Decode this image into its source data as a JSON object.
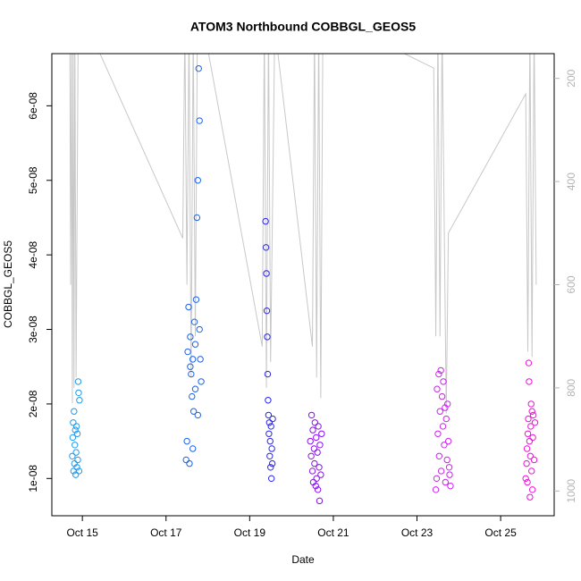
{
  "chart_data": {
    "type": "scatter",
    "title": "ATOM3 Northbound COBBGL_GEOS5",
    "x_label": "Date",
    "y_label": "COBBGL_GEOS5",
    "xlim": [
      14.27,
      26.28
    ],
    "xticks": [
      {
        "value": 15,
        "label": "Oct 15"
      },
      {
        "value": 17,
        "label": "Oct 17"
      },
      {
        "value": 19,
        "label": "Oct 19"
      },
      {
        "value": 21,
        "label": "Oct 21"
      },
      {
        "value": 23,
        "label": "Oct 23"
      },
      {
        "value": 25,
        "label": "Oct 25"
      }
    ],
    "ylim": [
      5e-09,
      6.7e-08
    ],
    "yticks": [
      {
        "value": 1e-08,
        "label": "1e-08"
      },
      {
        "value": 2e-08,
        "label": "2e-08"
      },
      {
        "value": 3e-08,
        "label": "3e-08"
      },
      {
        "value": 4e-08,
        "label": "4e-08"
      },
      {
        "value": 5e-08,
        "label": "5e-08"
      },
      {
        "value": 6e-08,
        "label": "6e-08"
      }
    ],
    "y2lim": [
      1048,
      152
    ],
    "y2ticks": [
      200,
      400,
      600,
      800,
      1000
    ],
    "grid": false,
    "series": [
      {
        "color": "#c8c8c8",
        "axis": "y2",
        "x": [
          14.7,
          14.72,
          14.74,
          14.76,
          14.78,
          14.8,
          14.82,
          14.85,
          14.9,
          15.3,
          17.4,
          17.45,
          17.5,
          17.55,
          17.6,
          17.65,
          17.7,
          17.75,
          17.9,
          19.3,
          19.35,
          19.4,
          19.45,
          19.5,
          19.6,
          20.5,
          20.55,
          20.6,
          20.65,
          20.7,
          20.75,
          22.7,
          23.4,
          23.45,
          23.5,
          23.55,
          23.6,
          23.7,
          23.75,
          25.6,
          25.65,
          25.7,
          25.75,
          25.8,
          25.85
        ],
        "values": [
          100,
          600,
          100,
          830,
          100,
          800,
          100,
          780,
          100,
          130,
          510,
          100,
          600,
          100,
          780,
          100,
          700,
          100,
          100,
          720,
          100,
          800,
          100,
          750,
          100,
          720,
          100,
          780,
          100,
          820,
          100,
          152,
          180,
          700,
          100,
          700,
          100,
          850,
          500,
          230,
          730,
          100,
          740,
          100,
          600
        ]
      },
      {
        "color": "#1e9bef",
        "x": [
          14.76,
          14.77,
          14.78,
          14.79,
          14.8,
          14.81,
          14.82,
          14.83,
          14.84,
          14.85,
          14.86,
          14.87,
          14.88,
          14.89,
          14.9,
          14.91,
          14.92,
          14.93
        ],
        "values": [
          1.3e-08,
          1.55e-08,
          1.75e-08,
          1.1e-08,
          1.9e-08,
          1.2e-08,
          1.45e-08,
          1.65e-08,
          1.05e-08,
          1.35e-08,
          1.7e-08,
          1.15e-08,
          1.6e-08,
          1.25e-08,
          2.3e-08,
          2.15e-08,
          1.1e-08,
          2.05e-08
        ]
      },
      {
        "color": "#1a62f2",
        "x": [
          17.48,
          17.5,
          17.52,
          17.54,
          17.56,
          17.58,
          17.6,
          17.62,
          17.64,
          17.66,
          17.68,
          17.7,
          17.72,
          17.74,
          17.76,
          17.78,
          17.8,
          17.82,
          17.84,
          17.58,
          17.64,
          17.7,
          17.76,
          17.8
        ],
        "values": [
          1.25e-08,
          1.5e-08,
          2.7e-08,
          3.3e-08,
          1.2e-08,
          2.9e-08,
          2.4e-08,
          2.1e-08,
          2.6e-08,
          1.9e-08,
          3.1e-08,
          2.2e-08,
          3.4e-08,
          4.5e-08,
          5e-08,
          6.5e-08,
          5.8e-08,
          2.6e-08,
          2.3e-08,
          2.5e-08,
          1.4e-08,
          2.8e-08,
          1.85e-08,
          3e-08
        ]
      },
      {
        "color": "#2a24ee",
        "x": [
          19.38,
          19.39,
          19.4,
          19.41,
          19.42,
          19.43,
          19.44,
          19.45,
          19.46,
          19.47,
          19.48,
          19.49,
          19.5,
          19.51,
          19.52,
          19.53,
          19.54,
          19.55
        ],
        "values": [
          4.45e-08,
          4.1e-08,
          3.75e-08,
          3.25e-08,
          2.9e-08,
          2.4e-08,
          2.05e-08,
          1.85e-08,
          1.6e-08,
          1.75e-08,
          1.3e-08,
          1.5e-08,
          1.15e-08,
          1.7e-08,
          1e-08,
          1.4e-08,
          1.2e-08,
          1.8e-08
        ]
      },
      {
        "color": "#8a10f0",
        "x": [
          20.45,
          20.47,
          20.48,
          20.5,
          20.51,
          20.52,
          20.54,
          20.55,
          20.56,
          20.58,
          20.59,
          20.6,
          20.62,
          20.63,
          20.64,
          20.66,
          20.67,
          20.68,
          20.7,
          20.72
        ],
        "values": [
          1.5e-08,
          1.3e-08,
          1.85e-08,
          1.1e-08,
          1.65e-08,
          9.5e-09,
          1.4e-08,
          1.2e-08,
          1.75e-08,
          9e-09,
          1.55e-08,
          1e-08,
          1.35e-08,
          8.5e-09,
          1.7e-08,
          1.15e-08,
          7e-09,
          1.45e-08,
          1.05e-08,
          1.6e-08
        ]
      },
      {
        "color": "#cc22ee",
        "x": [
          23.45,
          23.47,
          23.48,
          23.5,
          23.52,
          23.53,
          23.55,
          23.57,
          23.58,
          23.6,
          23.62,
          23.63,
          23.65,
          23.67,
          23.68,
          23.7,
          23.72,
          23.73,
          23.75,
          23.77,
          23.78,
          23.8
        ],
        "values": [
          8.5e-09,
          1e-08,
          2.2e-08,
          1.6e-08,
          2.4e-08,
          1.3e-08,
          1.9e-08,
          2.45e-08,
          1.1e-08,
          2.1e-08,
          1.7e-08,
          2.3e-08,
          1.45e-08,
          1.95e-08,
          9.5e-09,
          1.8e-08,
          1.25e-08,
          2e-08,
          1.5e-08,
          1.15e-08,
          1.05e-08,
          9e-09
        ]
      },
      {
        "color": "#f010d8",
        "x": [
          25.6,
          25.62,
          25.63,
          25.64,
          25.65,
          25.66,
          25.67,
          25.68,
          25.69,
          25.7,
          25.71,
          25.72,
          25.73,
          25.74,
          25.75,
          25.76,
          25.77,
          25.78,
          25.8,
          25.82
        ],
        "values": [
          1e-08,
          1.2e-08,
          1.4e-08,
          9.5e-09,
          1.6e-08,
          1.8e-08,
          2.55e-08,
          2.3e-08,
          1.5e-08,
          7.5e-09,
          1.3e-08,
          1.7e-08,
          2e-08,
          1.1e-08,
          1.9e-08,
          8.5e-09,
          1.55e-08,
          1.85e-08,
          1.25e-08,
          1.75e-08
        ]
      }
    ]
  }
}
